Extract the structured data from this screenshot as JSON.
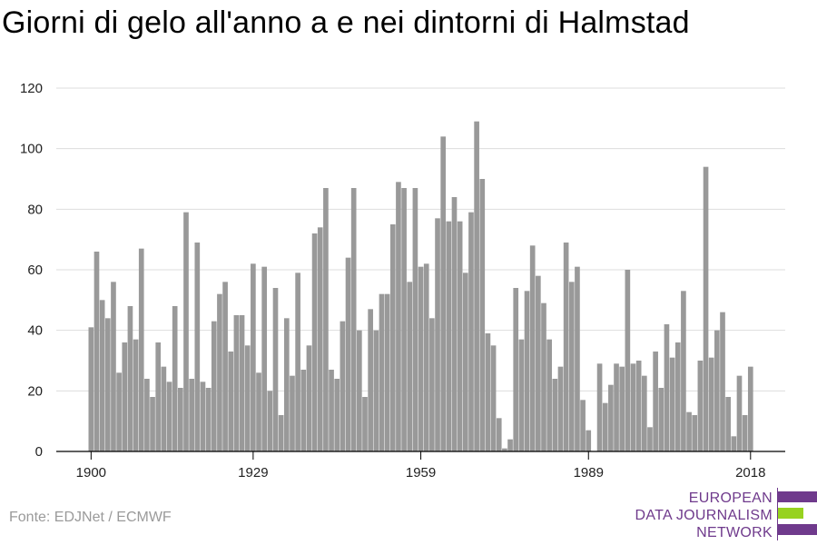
{
  "title": "Giorni di gelo all'anno a e nei dintorni di Halmstad",
  "source": "Fonte: EDJNet / ECMWF",
  "logo": {
    "lines": [
      "EUROPEAN",
      "DATA JOURNALISM",
      "NETWORK"
    ],
    "colors": {
      "purple": "#6f3a8c",
      "green": "#97d21f"
    }
  },
  "colors": {
    "bar": "#999999",
    "grid": "#dddddd",
    "axis": "#000000"
  },
  "chart_data": {
    "type": "bar",
    "title": "Giorni di gelo all'anno a e nei dintorni di Halmstad",
    "xlabel": "",
    "ylabel": "",
    "ylim": [
      0,
      120
    ],
    "yticks": [
      0,
      20,
      40,
      60,
      80,
      100,
      120
    ],
    "xticks": [
      1900,
      1929,
      1959,
      1989,
      2018
    ],
    "grid": true,
    "x_start": 1900,
    "x_end": 2018,
    "values": [
      41,
      66,
      50,
      44,
      56,
      26,
      36,
      48,
      37,
      67,
      24,
      18,
      36,
      28,
      23,
      48,
      21,
      79,
      24,
      69,
      23,
      21,
      43,
      52,
      56,
      33,
      45,
      45,
      35,
      62,
      26,
      61,
      20,
      54,
      12,
      44,
      25,
      59,
      27,
      35,
      72,
      74,
      87,
      27,
      24,
      43,
      64,
      87,
      40,
      18,
      47,
      40,
      52,
      52,
      75,
      89,
      87,
      56,
      87,
      61,
      62,
      44,
      77,
      104,
      76,
      84,
      76,
      59,
      79,
      109,
      90,
      39,
      35,
      11,
      1,
      4,
      54,
      37,
      53,
      68,
      58,
      49,
      37,
      24,
      28,
      69,
      56,
      61,
      17,
      7,
      0,
      29,
      16,
      22,
      29,
      28,
      60,
      29,
      30,
      25,
      8,
      33,
      21,
      42,
      31,
      36,
      53,
      13,
      12,
      30,
      94,
      31,
      40,
      46,
      18,
      5,
      25,
      12,
      28
    ]
  }
}
